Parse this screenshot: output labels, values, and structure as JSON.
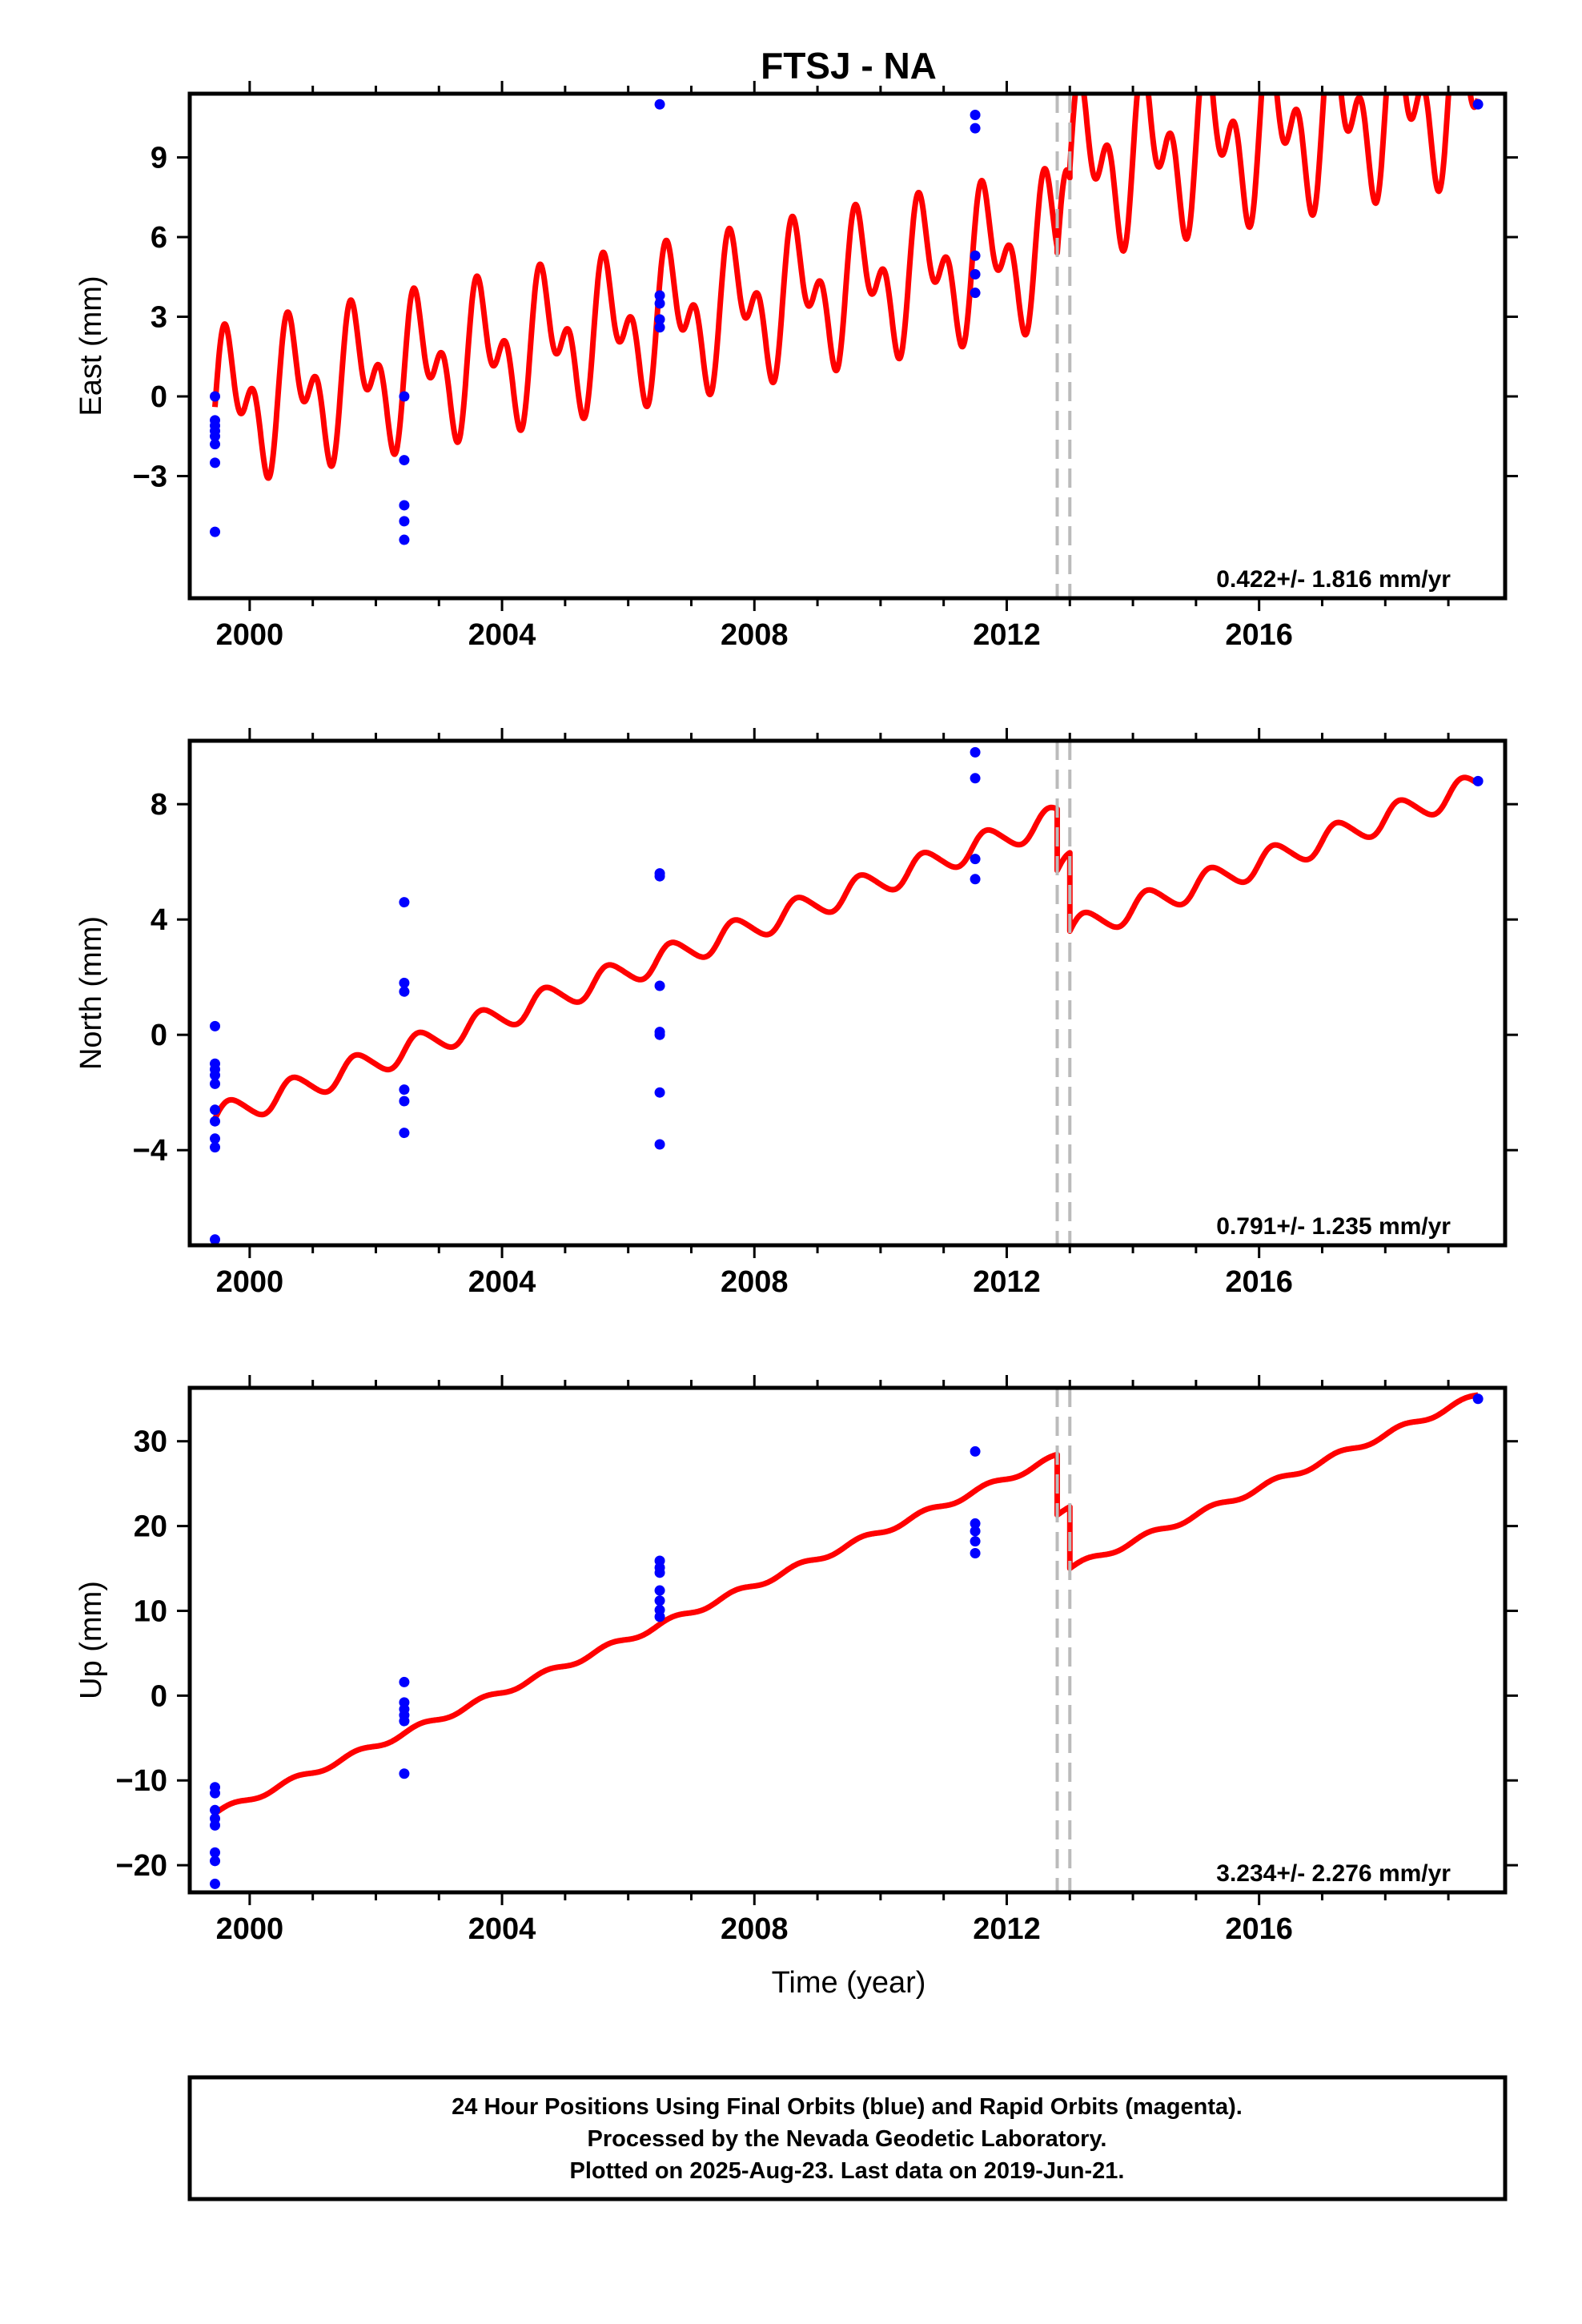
{
  "title": "FTSJ - NA",
  "xlabel": "Time (year)",
  "footer": [
    "24 Hour Positions Using Final Orbits (blue) and Rapid Orbits (magenta).",
    "Processed by the Nevada Geodetic Laboratory.",
    "Plotted on 2025-Aug-23. Last data on 2019-Jun-21."
  ],
  "colors": {
    "model": "#ff0000",
    "final_orbits": "#0000ff",
    "rapid_orbits": "#ff00ff",
    "offset_line": "#bbbbbb"
  },
  "chart_data": [
    {
      "type": "scatter",
      "component": "east",
      "ylabel": "East (mm)",
      "rate_label": "0.422+/- 1.816 mm/yr",
      "xlim": [
        1999.05,
        2019.9
      ],
      "ylim": [
        -7.6,
        11.4
      ],
      "xticks": [
        2000,
        2004,
        2008,
        2012,
        2016
      ],
      "yticks": [
        -3,
        0,
        3,
        6,
        9
      ],
      "ytick_labels": [
        "−3",
        "0",
        "3",
        "6",
        "9"
      ],
      "offsets": [
        2012.8,
        2013.0
      ],
      "model": {
        "segments": [
          {
            "t0": 1999.45,
            "t1": 2012.8,
            "base0": -0.4,
            "slope": 0.45,
            "annual": 1.9,
            "semiannual": 1.6
          },
          {
            "t0": 2012.8,
            "t1": 2013.0,
            "base0": 5.4,
            "slope": 0.45,
            "annual": 1.9,
            "semiannual": 1.6
          },
          {
            "t0": 2013.0,
            "t1": 2019.47,
            "base0": 8.6,
            "slope": 0.45,
            "annual": 2.1,
            "semiannual": 1.9
          }
        ]
      },
      "points": [
        [
          1999.45,
          0.0
        ],
        [
          1999.45,
          -0.9
        ],
        [
          1999.45,
          -1.1
        ],
        [
          1999.45,
          -1.3
        ],
        [
          1999.45,
          -1.5
        ],
        [
          1999.45,
          -1.8
        ],
        [
          1999.45,
          -2.5
        ],
        [
          1999.45,
          -5.1
        ],
        [
          2002.45,
          0.0
        ],
        [
          2002.45,
          -2.4
        ],
        [
          2002.45,
          -4.1
        ],
        [
          2002.45,
          -4.7
        ],
        [
          2002.45,
          -5.4
        ],
        [
          2006.5,
          11.0
        ],
        [
          2006.5,
          3.8
        ],
        [
          2006.5,
          3.5
        ],
        [
          2006.5,
          2.9
        ],
        [
          2006.5,
          2.6
        ],
        [
          2011.5,
          10.6
        ],
        [
          2011.5,
          10.1
        ],
        [
          2011.5,
          5.3
        ],
        [
          2011.5,
          4.6
        ],
        [
          2011.5,
          3.9
        ],
        [
          2019.47,
          11.0
        ]
      ]
    },
    {
      "type": "scatter",
      "component": "north",
      "ylabel": "North (mm)",
      "rate_label": "0.791+/- 1.235 mm/yr",
      "xlim": [
        1999.05,
        2019.9
      ],
      "ylim": [
        -7.3,
        10.2
      ],
      "xticks": [
        2000,
        2004,
        2008,
        2012,
        2016
      ],
      "yticks": [
        -4,
        0,
        4,
        8
      ],
      "ytick_labels": [
        "−4",
        "0",
        "4",
        "8"
      ],
      "offsets": [
        2012.8,
        2013.0
      ],
      "model": {
        "segments": [
          {
            "t0": 1999.45,
            "t1": 2012.8,
            "base0": -2.9,
            "slope": 0.78,
            "annual": 0.45,
            "semiannual": 0.05
          },
          {
            "t0": 2012.8,
            "t1": 2013.0,
            "base0": 5.7,
            "slope": 0.78,
            "annual": 0.45,
            "semiannual": 0.05
          },
          {
            "t0": 2013.0,
            "t1": 2019.47,
            "base0": 3.6,
            "slope": 0.78,
            "annual": 0.45,
            "semiannual": 0.05
          }
        ]
      },
      "points": [
        [
          1999.45,
          0.3
        ],
        [
          1999.45,
          -1.0
        ],
        [
          1999.45,
          -1.2
        ],
        [
          1999.45,
          -1.4
        ],
        [
          1999.45,
          -1.7
        ],
        [
          1999.45,
          -2.6
        ],
        [
          1999.45,
          -3.0
        ],
        [
          1999.45,
          -3.6
        ],
        [
          1999.45,
          -3.9
        ],
        [
          1999.45,
          -7.1
        ],
        [
          2002.45,
          4.6
        ],
        [
          2002.45,
          1.8
        ],
        [
          2002.45,
          1.5
        ],
        [
          2002.45,
          -1.9
        ],
        [
          2002.45,
          -2.3
        ],
        [
          2002.45,
          -3.4
        ],
        [
          2006.5,
          5.6
        ],
        [
          2006.5,
          5.5
        ],
        [
          2006.5,
          1.7
        ],
        [
          2006.5,
          0.1
        ],
        [
          2006.5,
          0.0
        ],
        [
          2006.5,
          -2.0
        ],
        [
          2006.5,
          -3.8
        ],
        [
          2011.5,
          9.8
        ],
        [
          2011.5,
          8.9
        ],
        [
          2011.5,
          6.1
        ],
        [
          2011.5,
          5.4
        ],
        [
          2019.47,
          8.8
        ]
      ]
    },
    {
      "type": "scatter",
      "component": "up",
      "ylabel": "Up (mm)",
      "rate_label": "3.234+/- 2.276 mm/yr",
      "xlim": [
        1999.05,
        2019.9
      ],
      "ylim": [
        -23.2,
        36.3
      ],
      "xticks": [
        2000,
        2004,
        2008,
        2012,
        2016
      ],
      "yticks": [
        -20,
        -10,
        0,
        10,
        20,
        30
      ],
      "ytick_labels": [
        "−20",
        "−10",
        "0",
        "10",
        "20",
        "30"
      ],
      "offsets": [
        2012.8,
        2013.0
      ],
      "model": {
        "segments": [
          {
            "t0": 1999.45,
            "t1": 2012.8,
            "base0": -13.9,
            "slope": 3.15,
            "annual": 0.35,
            "semiannual": 0.0
          },
          {
            "t0": 2012.8,
            "t1": 2013.0,
            "base0": 21.3,
            "slope": 3.15,
            "annual": 0.35,
            "semiannual": 0.0
          },
          {
            "t0": 2013.0,
            "t1": 2019.47,
            "base0": 15.0,
            "slope": 3.15,
            "annual": 0.35,
            "semiannual": 0.0
          }
        ]
      },
      "points": [
        [
          1999.45,
          -10.8
        ],
        [
          1999.45,
          -11.5
        ],
        [
          1999.45,
          -13.5
        ],
        [
          1999.45,
          -14.5
        ],
        [
          1999.45,
          -15.3
        ],
        [
          1999.45,
          -18.5
        ],
        [
          1999.45,
          -19.5
        ],
        [
          1999.45,
          -22.2
        ],
        [
          2002.45,
          1.6
        ],
        [
          2002.45,
          -0.8
        ],
        [
          2002.45,
          -1.6
        ],
        [
          2002.45,
          -2.3
        ],
        [
          2002.45,
          -3.0
        ],
        [
          2002.45,
          -9.2
        ],
        [
          2006.5,
          15.9
        ],
        [
          2006.5,
          15.1
        ],
        [
          2006.5,
          14.5
        ],
        [
          2006.5,
          12.4
        ],
        [
          2006.5,
          11.2
        ],
        [
          2006.5,
          10.1
        ],
        [
          2006.5,
          9.3
        ],
        [
          2011.5,
          28.8
        ],
        [
          2011.5,
          20.3
        ],
        [
          2011.5,
          19.4
        ],
        [
          2011.5,
          18.2
        ],
        [
          2011.5,
          16.8
        ],
        [
          2019.47,
          35.0
        ]
      ]
    }
  ]
}
